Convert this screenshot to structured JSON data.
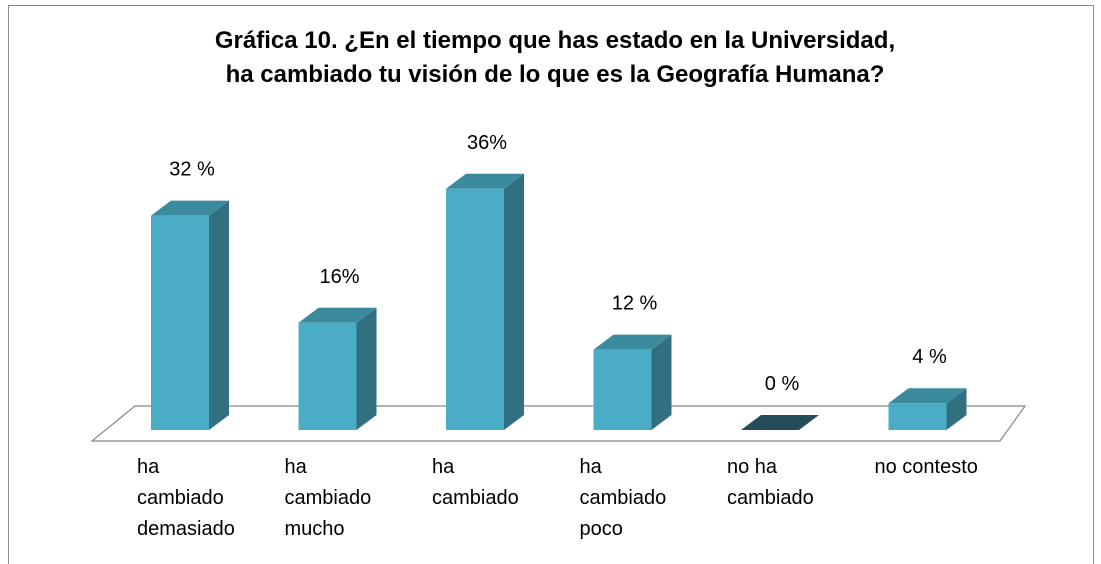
{
  "chart_data": {
    "type": "bar3d",
    "title": [
      "Gráfica 10. ¿En el tiempo que has estado en la Universidad,",
      "ha cambiado tu visión de lo que es la Geografía Humana?"
    ],
    "categories": [
      "ha cambiado demasiado",
      "ha cambiado mucho",
      "ha cambiado",
      "ha cambiado poco",
      "no ha cambiado",
      "no contesto"
    ],
    "values": [
      32,
      16,
      36,
      12,
      0,
      4
    ],
    "value_labels": [
      "32 %",
      "16%",
      "36%",
      "12 %",
      "0 %",
      "4 %"
    ],
    "color": "#4bacc6"
  }
}
